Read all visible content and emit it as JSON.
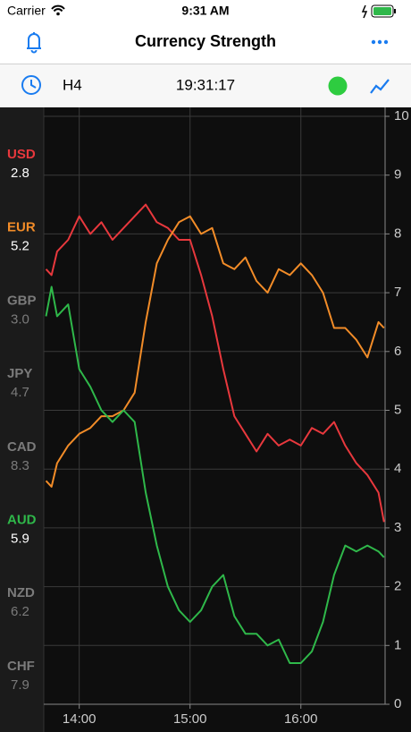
{
  "status_bar": {
    "carrier": "Carrier",
    "time": "9:31 AM"
  },
  "header": {
    "title": "Currency Strength"
  },
  "toolbar": {
    "timeframe": "H4",
    "clock": "19:31:17"
  },
  "chart_data": {
    "type": "line",
    "x": [
      13.7,
      13.75,
      13.8,
      13.9,
      14.0,
      14.1,
      14.2,
      14.3,
      14.4,
      14.5,
      14.6,
      14.7,
      14.8,
      14.9,
      15.0,
      15.1,
      15.2,
      15.3,
      15.4,
      15.5,
      15.6,
      15.7,
      15.8,
      15.9,
      16.0,
      16.1,
      16.2,
      16.3,
      16.4,
      16.5,
      16.6,
      16.7,
      16.75
    ],
    "xlim": [
      13.68,
      16.76
    ],
    "xticks": [
      {
        "value": 14,
        "label": "14:00"
      },
      {
        "value": 15,
        "label": "15:00"
      },
      {
        "value": 16,
        "label": "16:00"
      }
    ],
    "ylim": [
      0,
      10
    ],
    "yticks": [
      0,
      1,
      2,
      3,
      4,
      5,
      6,
      7,
      8,
      9,
      10
    ],
    "grid": true,
    "series": [
      {
        "name": "USD",
        "color": "#e8383d",
        "strength": 2.8,
        "values": [
          7.4,
          7.3,
          7.7,
          7.9,
          8.3,
          8.0,
          8.2,
          7.9,
          8.1,
          8.3,
          8.5,
          8.2,
          8.1,
          7.9,
          7.9,
          7.3,
          6.6,
          5.7,
          4.9,
          4.6,
          4.3,
          4.6,
          4.4,
          4.5,
          4.4,
          4.7,
          4.6,
          4.8,
          4.4,
          4.1,
          3.9,
          3.6,
          3.1
        ]
      },
      {
        "name": "EUR",
        "color": "#f28c28",
        "strength": 5.2,
        "values": [
          3.8,
          3.7,
          4.1,
          4.4,
          4.6,
          4.7,
          4.9,
          4.9,
          5.0,
          5.3,
          6.5,
          7.5,
          7.9,
          8.2,
          8.3,
          8.0,
          8.1,
          7.5,
          7.4,
          7.6,
          7.2,
          7.0,
          7.4,
          7.3,
          7.5,
          7.3,
          7.0,
          6.4,
          6.4,
          6.2,
          5.9,
          6.5,
          6.4
        ]
      },
      {
        "name": "GBP",
        "color": "#7b7b7b",
        "strength": {
          "value": 3,
          "label": "3.0"
        }
      },
      {
        "name": "JPY",
        "color": "#7b7b7b",
        "strength": 4.7
      },
      {
        "name": "CAD",
        "color": "#7b7b7b",
        "strength": 8.3
      },
      {
        "name": "AUD",
        "color": "#2fb84a",
        "strength": 5.9,
        "values": [
          6.6,
          7.1,
          6.6,
          6.8,
          5.7,
          5.4,
          5.0,
          4.8,
          5.0,
          4.8,
          3.6,
          2.7,
          2.0,
          1.6,
          1.4,
          1.6,
          2.0,
          2.2,
          1.5,
          1.2,
          1.2,
          1.0,
          1.1,
          0.7,
          0.7,
          0.9,
          1.4,
          2.2,
          2.7,
          2.6,
          2.7,
          2.6,
          2.5
        ]
      },
      {
        "name": "NZD",
        "color": "#7b7b7b",
        "strength": 6.2
      },
      {
        "name": "CHF",
        "color": "#7b7b7b",
        "strength": 7.9
      }
    ]
  }
}
